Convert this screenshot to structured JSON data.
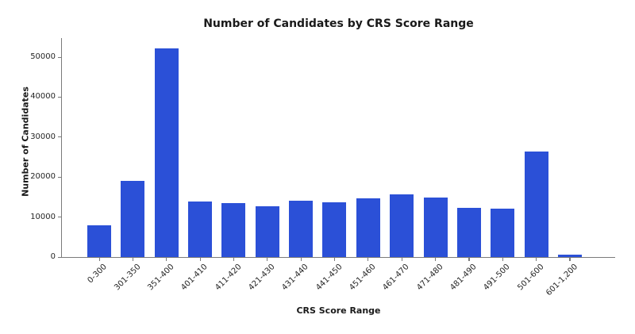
{
  "chart_data": {
    "type": "bar",
    "title": "Number of Candidates by CRS Score Range",
    "xlabel": "CRS Score Range",
    "ylabel": "Number of Candidates",
    "categories": [
      "0-300",
      "301-350",
      "351-400",
      "401-410",
      "411-420",
      "421-430",
      "431-440",
      "441-450",
      "451-460",
      "461-470",
      "471-480",
      "481-490",
      "491-500",
      "501-600",
      "601-1,200"
    ],
    "values": [
      7900,
      19000,
      52100,
      13900,
      13500,
      12700,
      14000,
      13700,
      14600,
      15700,
      14900,
      12300,
      12200,
      26300,
      650
    ],
    "yticks": [
      0,
      10000,
      20000,
      30000,
      40000,
      50000
    ],
    "ylim": [
      0,
      54800
    ],
    "grid": false,
    "legend": "none",
    "bar_color": "#2b50d7",
    "axis_color": "#7a7a7a",
    "text_color": "#262626",
    "title_color": "#1a1a1a",
    "background_color": "#ffffff"
  }
}
